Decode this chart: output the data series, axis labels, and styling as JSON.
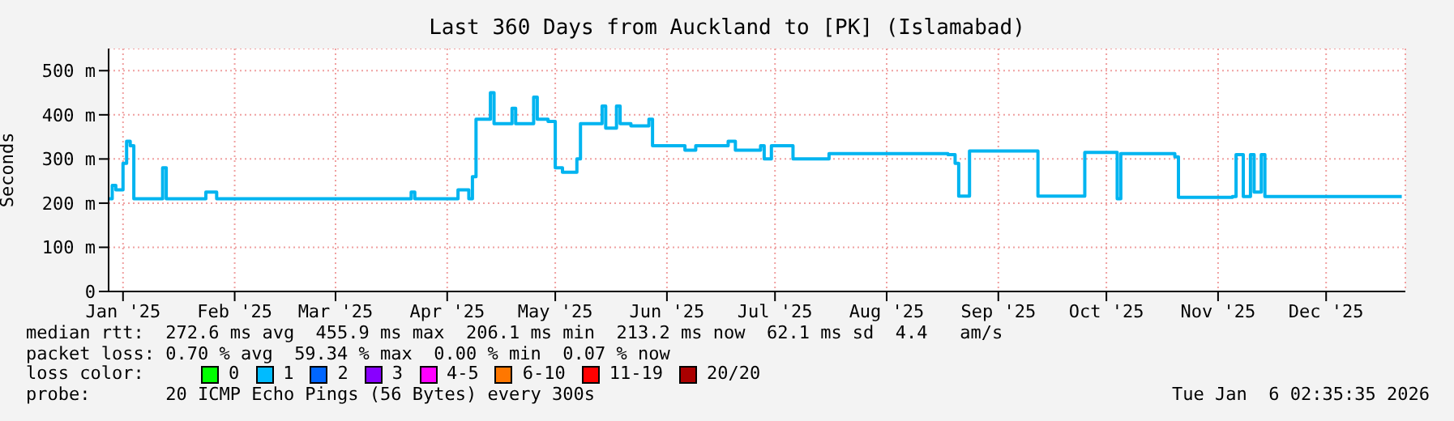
{
  "chart_data": {
    "type": "step",
    "title": "Last 360 Days from Auckland to [PK] (Islamabad)",
    "ylabel": "Seconds",
    "x": [
      "2025-01-11",
      "2025-01-12",
      "2025-01-13",
      "2025-01-15",
      "2025-01-16",
      "2025-01-17",
      "2025-01-18",
      "2025-01-25",
      "2025-01-26",
      "2025-01-27",
      "2025-02-07",
      "2025-02-10",
      "2025-02-26",
      "2025-04-05",
      "2025-04-06",
      "2025-04-18",
      "2025-04-21",
      "2025-04-22",
      "2025-04-23",
      "2025-04-27",
      "2025-04-28",
      "2025-05-03",
      "2025-05-04",
      "2025-05-09",
      "2025-05-10",
      "2025-05-13",
      "2025-05-15",
      "2025-05-17",
      "2025-05-21",
      "2025-05-22",
      "2025-05-28",
      "2025-05-29",
      "2025-06-01",
      "2025-06-02",
      "2025-06-05",
      "2025-06-10",
      "2025-06-11",
      "2025-06-20",
      "2025-06-23",
      "2025-07-01",
      "2025-07-02",
      "2025-07-04",
      "2025-07-11",
      "2025-07-12",
      "2025-07-14",
      "2025-07-19",
      "2025-07-20",
      "2025-07-30",
      "2025-09-01",
      "2025-09-03",
      "2025-09-04",
      "2025-09-06",
      "2025-09-07",
      "2025-09-25",
      "2025-09-26",
      "2025-10-08",
      "2025-10-09",
      "2025-10-17",
      "2025-10-18",
      "2025-10-19",
      "2025-11-03",
      "2025-11-04",
      "2025-11-19",
      "2025-11-20",
      "2025-11-22",
      "2025-11-24",
      "2025-11-25",
      "2025-11-27",
      "2025-11-28",
      "2026-01-05"
    ],
    "series": [
      {
        "color": "#00b4f0",
        "values": [
          210,
          240,
          230,
          290,
          340,
          330,
          210,
          210,
          280,
          210,
          225,
          210,
          210,
          225,
          210,
          230,
          210,
          260,
          390,
          450,
          380,
          415,
          380,
          440,
          390,
          385,
          280,
          270,
          300,
          380,
          420,
          370,
          420,
          380,
          375,
          390,
          330,
          320,
          330,
          330,
          340,
          320,
          330,
          300,
          330,
          330,
          300,
          312,
          310,
          290,
          216,
          216,
          318,
          318,
          216,
          216,
          315,
          315,
          210,
          312,
          305,
          213,
          215,
          310,
          215,
          310,
          225,
          310,
          215,
          215
        ]
      }
    ],
    "xlim": [
      "2025-01-11",
      "2026-01-06"
    ],
    "xticks": [
      {
        "value": "2025-01-15",
        "label": "Jan '25"
      },
      {
        "value": "2025-02-15",
        "label": "Feb '25"
      },
      {
        "value": "2025-03-15",
        "label": "Mar '25"
      },
      {
        "value": "2025-04-15",
        "label": "Apr '25"
      },
      {
        "value": "2025-05-15",
        "label": "May '25"
      },
      {
        "value": "2025-06-15",
        "label": "Jun '25"
      },
      {
        "value": "2025-07-15",
        "label": "Jul '25"
      },
      {
        "value": "2025-08-15",
        "label": "Aug '25"
      },
      {
        "value": "2025-09-15",
        "label": "Sep '25"
      },
      {
        "value": "2025-10-15",
        "label": "Oct '25"
      },
      {
        "value": "2025-11-15",
        "label": "Nov '25"
      },
      {
        "value": "2025-12-15",
        "label": "Dec '25"
      }
    ],
    "ylim": [
      0,
      550
    ],
    "yticks": [
      {
        "value": 0,
        "label": "0"
      },
      {
        "value": 100,
        "label": "100 m"
      },
      {
        "value": 200,
        "label": "200 m"
      },
      {
        "value": 300,
        "label": "300 m"
      },
      {
        "value": 400,
        "label": "400 m"
      },
      {
        "value": 500,
        "label": "500 m"
      }
    ],
    "grid": true,
    "annotations": [
      "median rtt:  272.6 ms avg  455.9 ms max  206.1 ms min  213.2 ms now  62.1 ms sd  4.4   am/s",
      "packet loss: 0.70 % avg  59.34 % max  0.00 % min  0.07 % now",
      "loss color:",
      "0",
      "1",
      "2",
      "3",
      "4-5",
      "6-10",
      "11-19",
      "20/20",
      "probe:       20 ICMP Echo Pings (56 Bytes) every 300s",
      "Tue Jan  6 02:35:35 2026"
    ]
  }
}
